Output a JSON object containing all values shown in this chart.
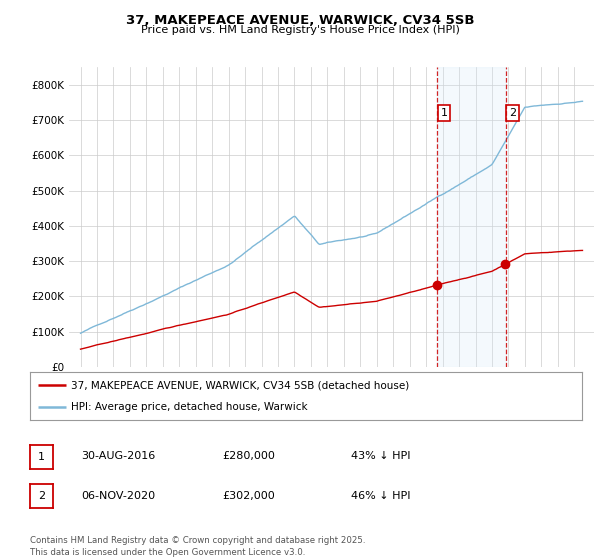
{
  "title_line1": "37, MAKEPEACE AVENUE, WARWICK, CV34 5SB",
  "title_line2": "Price paid vs. HM Land Registry's House Price Index (HPI)",
  "ylim": [
    0,
    850000
  ],
  "yticks": [
    0,
    100000,
    200000,
    300000,
    400000,
    500000,
    600000,
    700000,
    800000
  ],
  "ytick_labels": [
    "£0",
    "£100K",
    "£200K",
    "£300K",
    "£400K",
    "£500K",
    "£600K",
    "£700K",
    "£800K"
  ],
  "hpi_color": "#7fb8d8",
  "hpi_fill_color": "#d6eaf8",
  "sale_color": "#cc0000",
  "dashed_color": "#cc0000",
  "marker1_x": 2016.67,
  "marker2_x": 2020.85,
  "legend_entries": [
    "37, MAKEPEACE AVENUE, WARWICK, CV34 5SB (detached house)",
    "HPI: Average price, detached house, Warwick"
  ],
  "legend_colors": [
    "#cc0000",
    "#7fb8d8"
  ],
  "table_rows": [
    {
      "num": "1",
      "date": "30-AUG-2016",
      "price": "£280,000",
      "hpi": "43% ↓ HPI"
    },
    {
      "num": "2",
      "date": "06-NOV-2020",
      "price": "£302,000",
      "hpi": "46% ↓ HPI"
    }
  ],
  "footer": "Contains HM Land Registry data © Crown copyright and database right 2025.\nThis data is licensed under the Open Government Licence v3.0.",
  "bg_color": "#ffffff",
  "grid_color": "#cccccc"
}
